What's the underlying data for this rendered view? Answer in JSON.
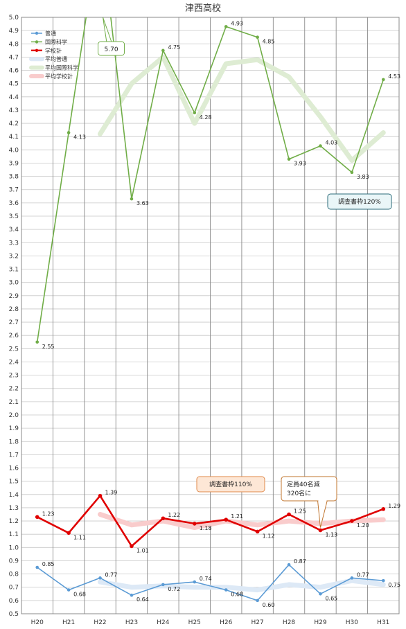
{
  "chart_data": {
    "type": "line",
    "title": "津西高校",
    "categories": [
      "H20",
      "H21",
      "H22",
      "H23",
      "H24",
      "H25",
      "H26",
      "H27",
      "H28",
      "H29",
      "H30",
      "H31"
    ],
    "ylim": [
      0.5,
      5.0
    ],
    "ytick_step": 0.1,
    "grid": true,
    "legend_position": "top-left",
    "series": [
      {
        "name": "普通",
        "color": "#5b9bd5",
        "style": "line-marker",
        "labels": true,
        "values": [
          0.85,
          0.68,
          0.77,
          0.64,
          0.72,
          0.74,
          0.68,
          0.6,
          0.87,
          0.65,
          0.77,
          0.75
        ]
      },
      {
        "name": "国際科学",
        "color": "#70ad47",
        "style": "line-marker",
        "labels": true,
        "values": [
          2.55,
          4.13,
          5.7,
          3.63,
          4.75,
          4.28,
          4.93,
          4.85,
          3.93,
          4.03,
          3.83,
          4.53
        ]
      },
      {
        "name": "学校計",
        "color": "#e00000",
        "style": "line-marker-bold",
        "labels": true,
        "values": [
          1.23,
          1.11,
          1.39,
          1.01,
          1.22,
          1.18,
          1.21,
          1.12,
          1.25,
          1.13,
          1.2,
          1.29
        ]
      },
      {
        "name": "平均普通",
        "color": "#dde9f6",
        "style": "thick",
        "values": [
          null,
          null,
          0.74,
          0.7,
          0.71,
          0.7,
          0.7,
          0.68,
          0.72,
          0.7,
          0.75,
          0.72
        ]
      },
      {
        "name": "平均国際科学",
        "color": "#deecd3",
        "style": "thick",
        "values": [
          null,
          null,
          4.12,
          4.5,
          4.7,
          4.2,
          4.65,
          4.68,
          4.55,
          4.25,
          3.92,
          4.13
        ]
      },
      {
        "name": "平均学校計",
        "color": "#f9cccc",
        "style": "thick",
        "values": [
          null,
          null,
          1.25,
          1.17,
          1.2,
          1.15,
          1.2,
          1.17,
          1.2,
          1.18,
          1.2,
          1.21
        ]
      }
    ],
    "annotations": [
      {
        "text": "5.70",
        "style": "green"
      },
      {
        "text": "調査書枠120%",
        "style": "teal"
      },
      {
        "text": "調査書枠110%",
        "style": "orange"
      },
      {
        "lines": [
          "定員40名減",
          "320名に"
        ],
        "style": "orange-dark"
      }
    ]
  }
}
